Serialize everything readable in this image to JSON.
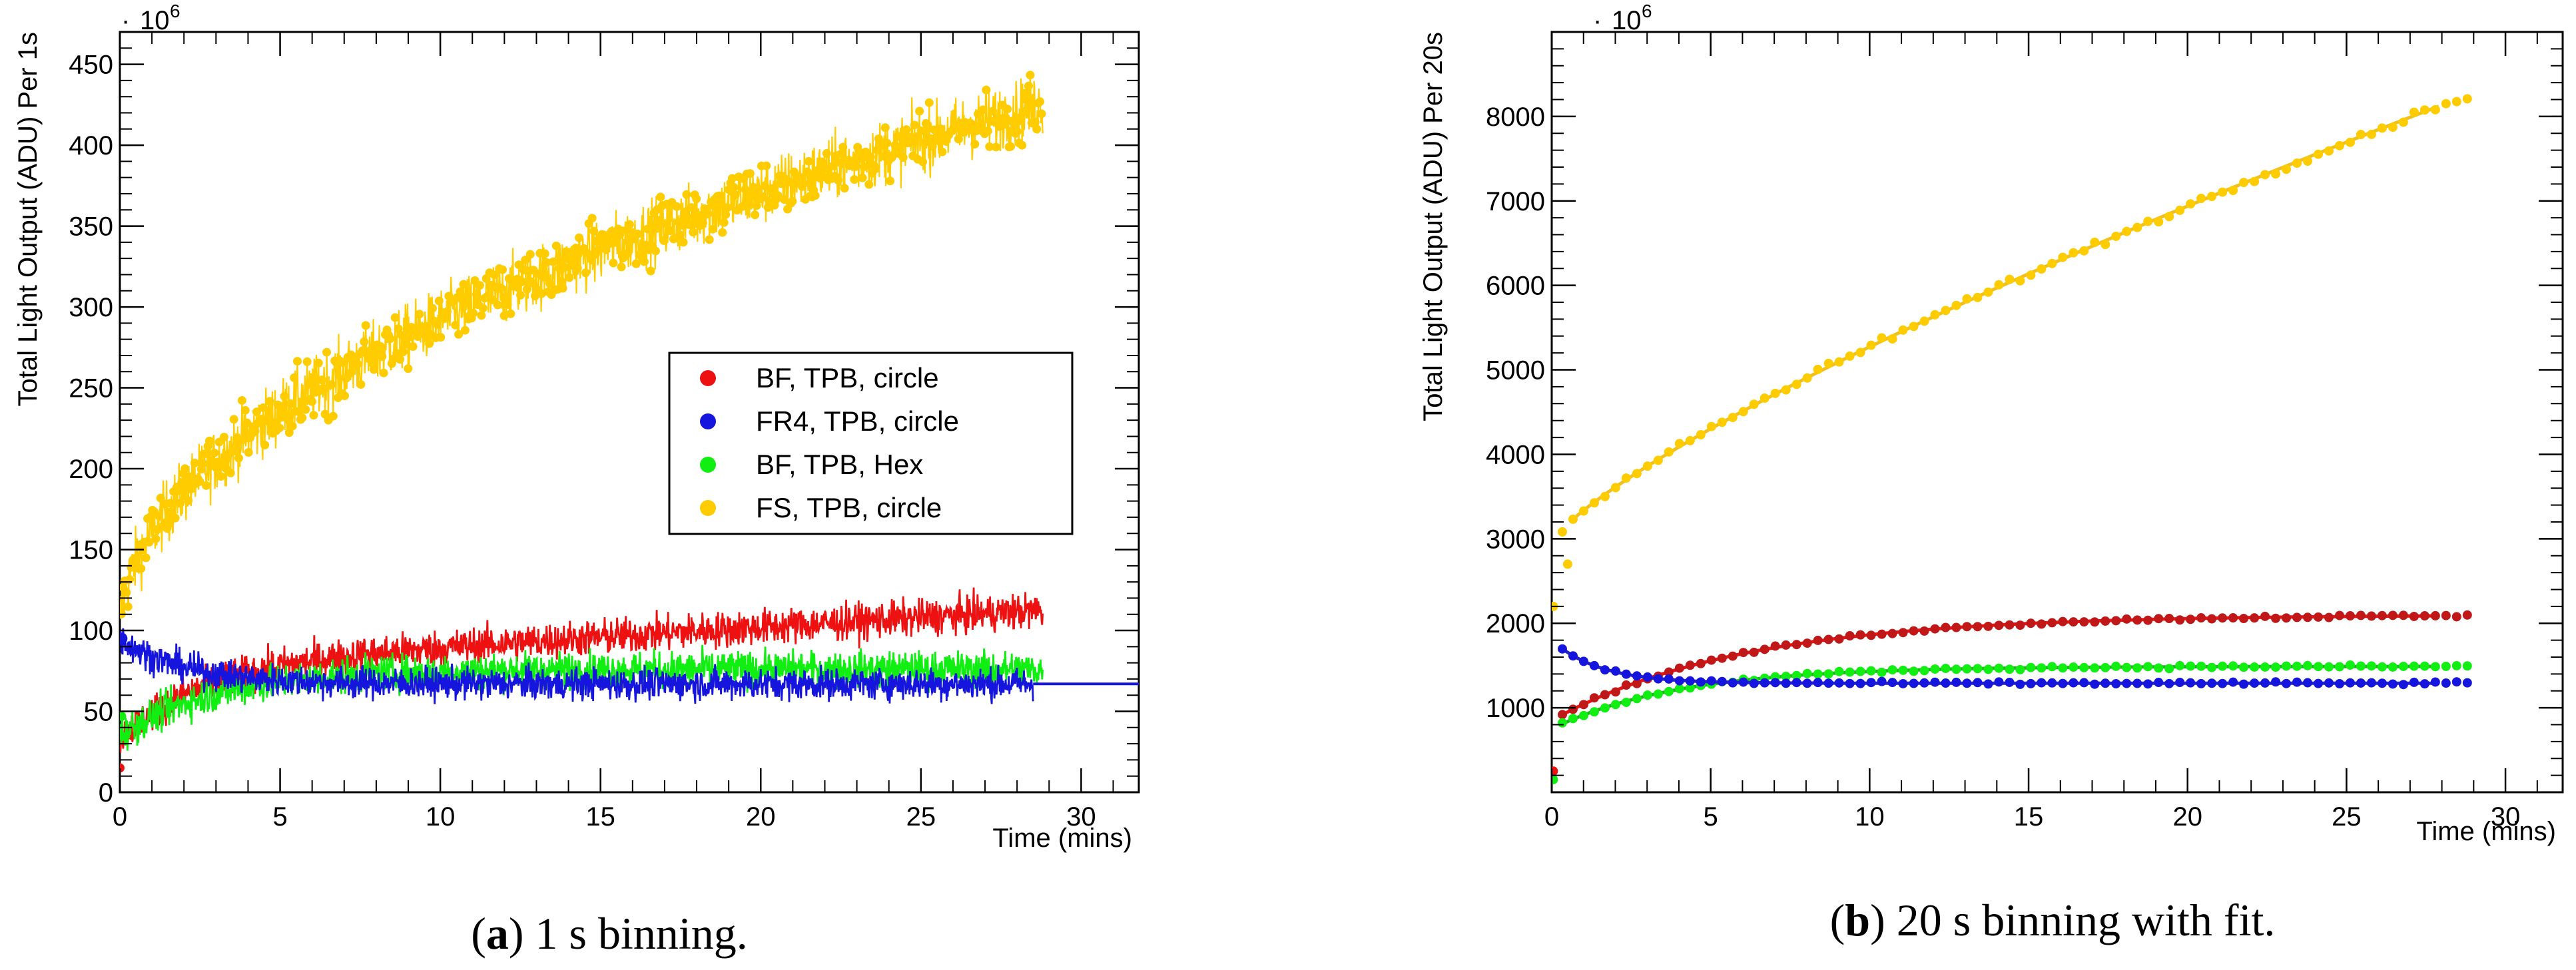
{
  "colors": {
    "red": "#ee1111",
    "blue": "#1515dd",
    "green": "#11ee11",
    "yellow": "#ffcc00",
    "red_dark": "#c01818",
    "blue_dark": "#2424c0",
    "green_dark": "#20b020",
    "yellow_dark": "#f0c020"
  },
  "chart_data": [
    {
      "type": "scatter",
      "panel": "a",
      "caption_label": "a",
      "caption_text": " 1 s binning.",
      "xlabel": "Time (mins)",
      "ylabel": "Total Light Output (ADU) Per 1s",
      "scale_label": "10",
      "scale_exponent": "6",
      "scale_dot": "·",
      "xlim": [
        0,
        31.8
      ],
      "ylim": [
        0,
        470
      ],
      "x_ticks": [
        0,
        5,
        10,
        15,
        20,
        25,
        30
      ],
      "y_ticks": [
        0,
        50,
        100,
        150,
        200,
        250,
        300,
        350,
        400,
        450
      ],
      "grid": false,
      "legend": [
        {
          "label": "BF, TPB, circle",
          "color_key": "red"
        },
        {
          "label": "FR4, TPB, circle",
          "color_key": "blue"
        },
        {
          "label": "BF, TPB, Hex",
          "color_key": "green"
        },
        {
          "label": "FS, TPB, circle",
          "color_key": "yellow"
        }
      ],
      "legend_position": "center-right",
      "series": [
        {
          "name": "FS, TPB, circle",
          "color_key": "yellow",
          "model": "sqrt",
          "start": 100,
          "end": 425,
          "noise": 14,
          "x_end": 28.8
        },
        {
          "name": "BF, TPB, circle",
          "color_key": "red",
          "model": "exp_plus_linear",
          "start": 33,
          "level": 78,
          "slope": 1.2,
          "tau": 2.5,
          "noise": 8,
          "x_end": 28.8
        },
        {
          "name": "BF, TPB, Hex",
          "color_key": "green",
          "model": "exp",
          "start": 35,
          "level": 76,
          "tau": 3.0,
          "noise": 8,
          "x_end": 28.8
        },
        {
          "name": "FR4, TPB, circle",
          "color_key": "blue",
          "model": "exp",
          "start": 95,
          "level": 67,
          "tau": 2.0,
          "noise": 7,
          "x_end": 28.5,
          "line_to_x": 31.8
        }
      ]
    },
    {
      "type": "scatter",
      "panel": "b",
      "caption_label": "b",
      "caption_text": " 20 s binning with fit.",
      "xlabel": "Time (mins)",
      "ylabel": "Total Light Output (ADU) Per 20s",
      "scale_label": "10",
      "scale_exponent": "6",
      "scale_dot": "·",
      "xlim": [
        0,
        31.8
      ],
      "ylim": [
        0,
        9000
      ],
      "x_ticks": [
        0,
        5,
        10,
        15,
        20,
        25,
        30
      ],
      "y_ticks": [
        1000,
        2000,
        3000,
        4000,
        5000,
        6000,
        7000,
        8000
      ],
      "grid": false,
      "series": [
        {
          "name": "FS, TPB, circle",
          "color_key": "yellow",
          "fit_color_key": "yellow_dark",
          "model": "sqrt_fit",
          "start": 2950,
          "end": 8250,
          "x_end": 28.8
        },
        {
          "name": "BF, TPB, circle",
          "color_key": "red_dark",
          "fit_color_key": "red",
          "model": "exp",
          "start": 850,
          "level": 2100,
          "tau": 6.0,
          "x_end": 28.8
        },
        {
          "name": "BF, TPB, Hex",
          "color_key": "green",
          "fit_color_key": "green_dark",
          "model": "exp",
          "start": 750,
          "level": 1490,
          "tau": 4.0,
          "x_end": 28.8
        },
        {
          "name": "FR4, TPB, circle",
          "color_key": "blue",
          "fit_color_key": "blue_dark",
          "model": "exp_decay",
          "start": 1800,
          "level": 1290,
          "tau": 1.5,
          "x_end": 28.8
        }
      ]
    }
  ]
}
